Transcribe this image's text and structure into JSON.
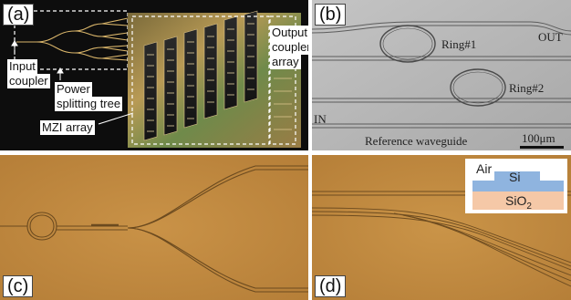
{
  "panels": {
    "a": {
      "tag": "(a)",
      "labels": {
        "input_coupler_1": "Input",
        "input_coupler_2": "coupler",
        "power_1": "Power",
        "power_2": "splitting tree",
        "mzi": "MZI array",
        "output_1": "Output",
        "output_2": "coupler",
        "output_3": "array"
      }
    },
    "b": {
      "tag": "(b)",
      "labels": {
        "ring1": "Ring#1",
        "ring2": "Ring#2",
        "out": "OUT",
        "in": "IN",
        "reference": "Reference waveguide",
        "scale": "100μm"
      }
    },
    "c": {
      "tag": "(c)"
    },
    "d": {
      "tag": "(d)",
      "inset": {
        "air": "Air",
        "si": "Si",
        "sio2": "SiO",
        "sio2_sub": "2"
      }
    }
  },
  "colors": {
    "chip_dark": "#0d0d0d",
    "gold": "#c9a15a",
    "grey_bg": "#b8b8b8",
    "orange_bg": "#c2893f",
    "si_blue": "#8fb4df",
    "sio2_peach": "#f5c8a7"
  }
}
